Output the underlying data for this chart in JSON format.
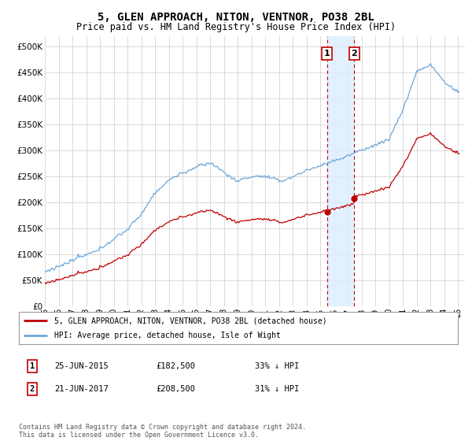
{
  "title": "5, GLEN APPROACH, NITON, VENTNOR, PO38 2BL",
  "subtitle": "Price paid vs. HM Land Registry's House Price Index (HPI)",
  "legend_line1": "5, GLEN APPROACH, NITON, VENTNOR, PO38 2BL (detached house)",
  "legend_line2": "HPI: Average price, detached house, Isle of Wight",
  "transaction1_date": "25-JUN-2015",
  "transaction1_price": 182500,
  "transaction1_label": "33% ↓ HPI",
  "transaction2_date": "21-JUN-2017",
  "transaction2_price": 208500,
  "transaction2_label": "31% ↓ HPI",
  "transaction1_x": 2015.48,
  "transaction2_x": 2017.47,
  "hpi_color": "#6EA6D8",
  "price_color": "#C00000",
  "background_color": "#FFFFFF",
  "grid_color": "#CCCCCC",
  "footnote": "Contains HM Land Registry data © Crown copyright and database right 2024.\nThis data is licensed under the Open Government Licence v3.0.",
  "ylim_min": 0,
  "ylim_max": 520000,
  "yticks": [
    0,
    50000,
    100000,
    150000,
    200000,
    250000,
    300000,
    350000,
    400000,
    450000,
    500000
  ],
  "xmin": 1995,
  "xmax": 2025.5,
  "hpi_base_years": [
    1995,
    1996,
    1997,
    1998,
    1999,
    2000,
    2001,
    2002,
    2003,
    2004,
    2005,
    2006,
    2007,
    2008,
    2009,
    2010,
    2011,
    2012,
    2013,
    2014,
    2015,
    2016,
    2017,
    2018,
    2019,
    2020,
    2021,
    2022,
    2023,
    2024,
    2025
  ],
  "hpi_base_vals": [
    65000,
    72000,
    82000,
    95000,
    110000,
    128000,
    148000,
    178000,
    215000,
    240000,
    255000,
    268000,
    275000,
    258000,
    238000,
    248000,
    248000,
    240000,
    248000,
    260000,
    272000,
    282000,
    292000,
    305000,
    318000,
    328000,
    385000,
    455000,
    470000,
    435000,
    415000
  ],
  "prop_factor1": 0.671,
  "prop_factor2": 0.7145
}
